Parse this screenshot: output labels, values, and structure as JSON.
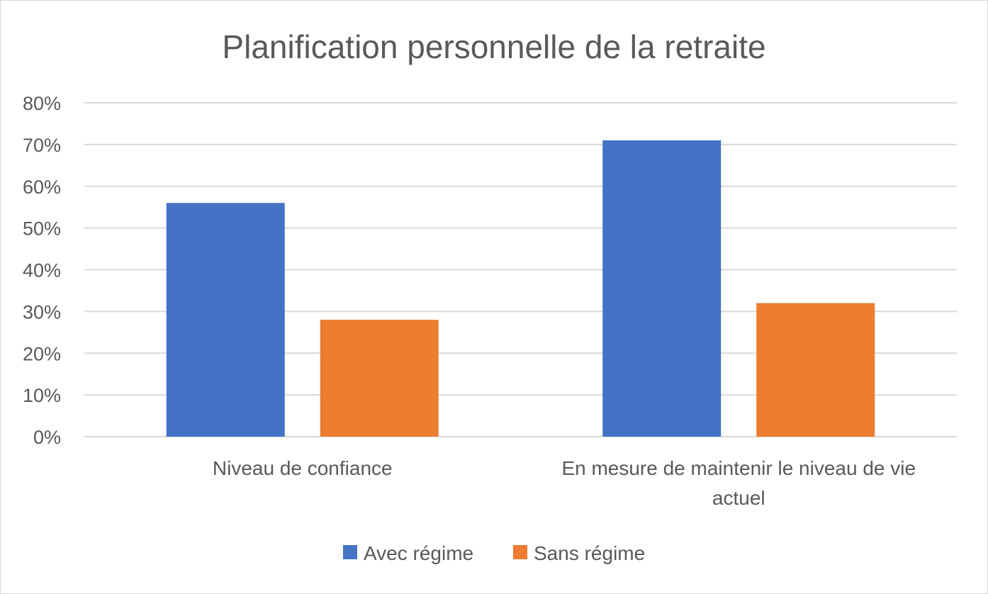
{
  "chart_data": {
    "type": "bar",
    "title": "Planification personnelle de la retraite",
    "categories": [
      [
        "Niveau de confiance"
      ],
      [
        "En mesure de maintenir le niveau de vie",
        "actuel"
      ]
    ],
    "series": [
      {
        "name": "Avec régime",
        "color": "#4472C4",
        "values": [
          0.56,
          0.71
        ]
      },
      {
        "name": "Sans régime",
        "color": "#ED7D31",
        "values": [
          0.28,
          0.32
        ]
      }
    ],
    "ylim": [
      0,
      0.8
    ],
    "yticks": [
      0,
      0.1,
      0.2,
      0.3,
      0.4,
      0.5,
      0.6,
      0.7,
      0.8
    ],
    "ytick_labels": [
      "0%",
      "10%",
      "20%",
      "30%",
      "40%",
      "50%",
      "60%",
      "70%",
      "80%"
    ],
    "gridlines": true,
    "legend_position": "bottom",
    "gridline_color": "#d9d9d9",
    "text_color": "#595959"
  }
}
